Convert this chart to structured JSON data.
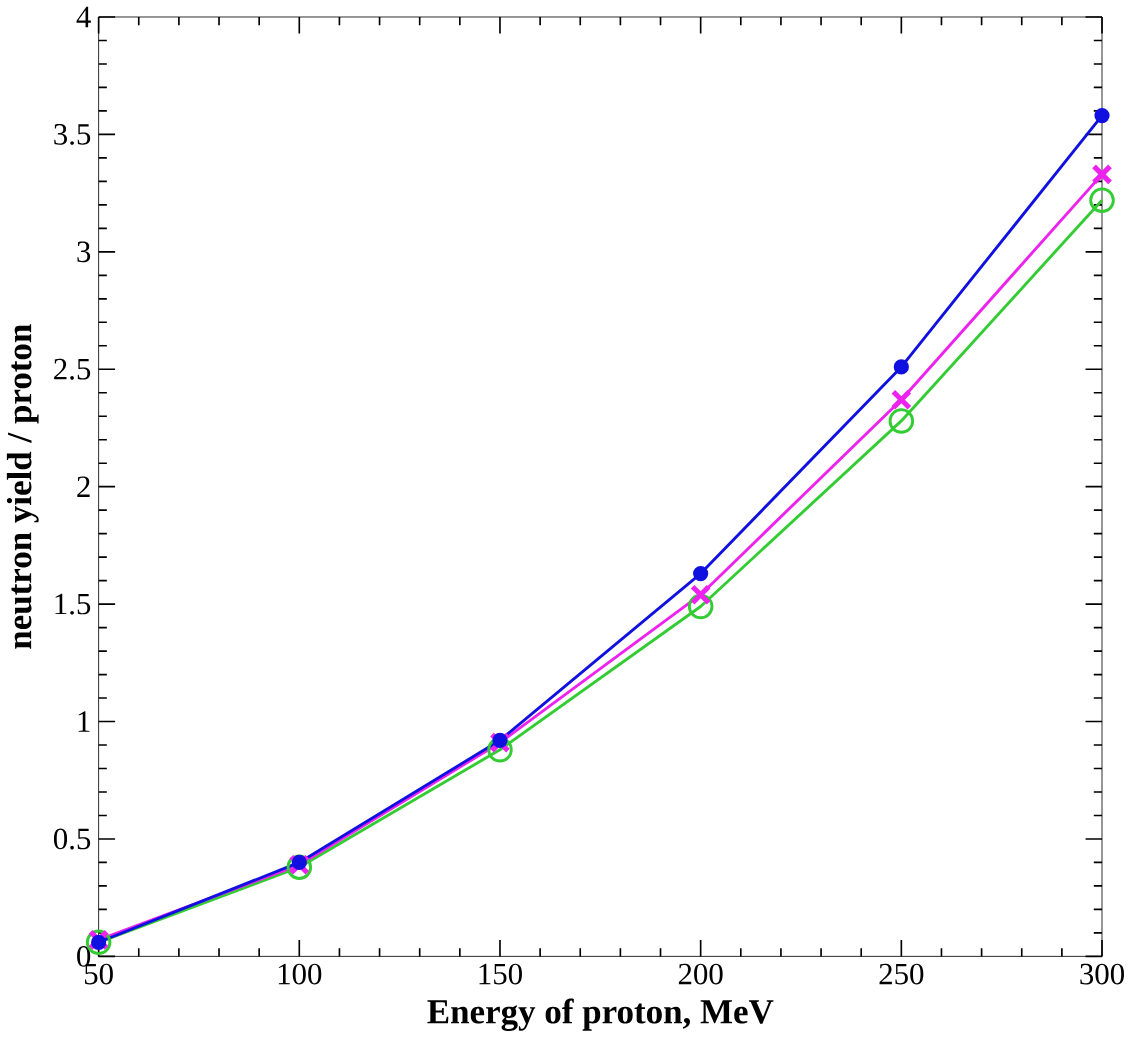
{
  "chart_data": {
    "type": "line",
    "xlabel": "Energy of proton,  MeV",
    "ylabel": "neutron yield /  proton",
    "x": [
      50,
      100,
      150,
      200,
      250,
      300
    ],
    "series": [
      {
        "color": "#33cc33",
        "marker": "circle",
        "values": [
          0.06,
          0.38,
          0.88,
          1.49,
          2.28,
          3.22
        ]
      },
      {
        "color": "#ee22ee",
        "marker": "cross",
        "values": [
          0.07,
          0.39,
          0.91,
          1.54,
          2.37,
          3.33
        ]
      },
      {
        "color": "#1010e0",
        "marker": "dot",
        "values": [
          0.06,
          0.4,
          0.92,
          1.63,
          2.51,
          3.58
        ]
      }
    ],
    "xlim": [
      50,
      300
    ],
    "xticks": [
      50,
      100,
      150,
      200,
      250,
      300
    ],
    "ylim": [
      0,
      4
    ],
    "yticks": [
      0,
      0.5,
      1,
      1.5,
      2,
      2.5,
      3,
      3.5,
      4
    ],
    "grid": false
  }
}
